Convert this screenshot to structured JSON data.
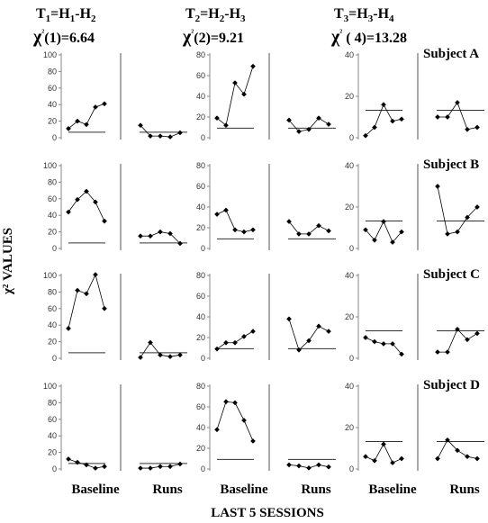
{
  "figure": {
    "ylabel": "χ² VALUES",
    "xlabel": "LAST 5 SESSIONS",
    "columns": [
      {
        "title_html": "T<sub>1</sub>=H<sub>1</sub>-H<sub>2</sub>",
        "stat": "χ²(1)=6.64"
      },
      {
        "title_html": "T<sub>2</sub>=H<sub>2</sub>-H<sub>3</sub>",
        "stat": "χ²(2)=9.21"
      },
      {
        "title_html": "T<sub>3</sub>=H<sub>3</sub>-H<sub>4</sub>",
        "stat": "χ² ( 4)=13.28"
      }
    ],
    "subjects": [
      "Subject A",
      "Subject B",
      "Subject C",
      "Subject D"
    ],
    "phases": [
      "Baseline",
      "Runs"
    ]
  },
  "chart_data": [
    {
      "type": "line",
      "subject": "Subject A",
      "test": "T1",
      "ylim": [
        0,
        100
      ],
      "yticks": [
        0,
        20,
        40,
        60,
        80,
        100
      ],
      "critical": 6.64,
      "series": [
        {
          "phase": "Baseline",
          "values": [
            11,
            20,
            16,
            37,
            41
          ]
        },
        {
          "phase": "Runs",
          "values": [
            15,
            2,
            2,
            1,
            6
          ]
        }
      ]
    },
    {
      "type": "line",
      "subject": "Subject A",
      "test": "T2",
      "ylim": [
        0,
        80
      ],
      "yticks": [
        0,
        20,
        40,
        60,
        80
      ],
      "critical": 9.21,
      "series": [
        {
          "phase": "Baseline",
          "values": [
            19,
            12,
            53,
            42,
            69
          ]
        },
        {
          "phase": "Runs",
          "values": [
            17,
            6,
            8,
            19,
            13
          ]
        }
      ]
    },
    {
      "type": "line",
      "subject": "Subject A",
      "test": "T3",
      "ylim": [
        0,
        40
      ],
      "yticks": [
        0,
        20,
        40
      ],
      "critical": 13.28,
      "series": [
        {
          "phase": "Baseline",
          "values": [
            1,
            5,
            16,
            8,
            9
          ]
        },
        {
          "phase": "Runs",
          "values": [
            10,
            10,
            17,
            4,
            5
          ]
        }
      ]
    },
    {
      "type": "line",
      "subject": "Subject B",
      "test": "T1",
      "ylim": [
        0,
        100
      ],
      "yticks": [
        0,
        20,
        40,
        60,
        80,
        100
      ],
      "critical": 6.64,
      "series": [
        {
          "phase": "Baseline",
          "values": [
            44,
            59,
            69,
            56,
            33
          ]
        },
        {
          "phase": "Runs",
          "values": [
            15,
            15,
            20,
            18,
            6
          ]
        }
      ]
    },
    {
      "type": "line",
      "subject": "Subject B",
      "test": "T2",
      "ylim": [
        0,
        80
      ],
      "yticks": [
        0,
        20,
        40,
        60,
        80
      ],
      "critical": 9.21,
      "series": [
        {
          "phase": "Baseline",
          "values": [
            33,
            37,
            18,
            16,
            18
          ]
        },
        {
          "phase": "Runs",
          "values": [
            26,
            14,
            14,
            22,
            17
          ]
        }
      ]
    },
    {
      "type": "line",
      "subject": "Subject B",
      "test": "T3",
      "ylim": [
        0,
        40
      ],
      "yticks": [
        0,
        20,
        40
      ],
      "critical": 13.28,
      "series": [
        {
          "phase": "Baseline",
          "values": [
            9,
            4,
            13,
            3,
            8
          ]
        },
        {
          "phase": "Runs",
          "values": [
            30,
            7,
            8,
            15,
            20
          ]
        }
      ]
    },
    {
      "type": "line",
      "subject": "Subject C",
      "test": "T1",
      "ylim": [
        0,
        100
      ],
      "yticks": [
        0,
        20,
        40,
        60,
        80,
        100
      ],
      "critical": 6.64,
      "series": [
        {
          "phase": "Baseline",
          "values": [
            36,
            82,
            78,
            101,
            60
          ]
        },
        {
          "phase": "Runs",
          "values": [
            1,
            19,
            4,
            2,
            4
          ]
        }
      ]
    },
    {
      "type": "line",
      "subject": "Subject C",
      "test": "T2",
      "ylim": [
        0,
        80
      ],
      "yticks": [
        0,
        20,
        40,
        60,
        80
      ],
      "critical": 9.21,
      "series": [
        {
          "phase": "Baseline",
          "values": [
            9,
            15,
            15,
            21,
            26
          ]
        },
        {
          "phase": "Runs",
          "values": [
            38,
            8,
            17,
            31,
            26
          ]
        }
      ]
    },
    {
      "type": "line",
      "subject": "Subject C",
      "test": "T3",
      "ylim": [
        0,
        40
      ],
      "yticks": [
        0,
        20,
        40
      ],
      "critical": 13.28,
      "series": [
        {
          "phase": "Baseline",
          "values": [
            10,
            8,
            7,
            7,
            2
          ]
        },
        {
          "phase": "Runs",
          "values": [
            3,
            3,
            14,
            9,
            12
          ]
        }
      ]
    },
    {
      "type": "line",
      "subject": "Subject D",
      "test": "T1",
      "ylim": [
        0,
        100
      ],
      "yticks": [
        0,
        20,
        40,
        60,
        80,
        100
      ],
      "critical": 6.64,
      "series": [
        {
          "phase": "Baseline",
          "values": [
            12,
            8,
            5,
            1,
            3
          ]
        },
        {
          "phase": "Runs",
          "values": [
            1,
            1,
            3,
            3,
            6
          ]
        }
      ]
    },
    {
      "type": "line",
      "subject": "Subject D",
      "test": "T2",
      "ylim": [
        0,
        80
      ],
      "yticks": [
        0,
        20,
        40,
        60,
        80
      ],
      "critical": 9.21,
      "series": [
        {
          "phase": "Baseline",
          "values": [
            38,
            65,
            64,
            47,
            27
          ]
        },
        {
          "phase": "Runs",
          "values": [
            4,
            3,
            1,
            4,
            2
          ]
        }
      ]
    },
    {
      "type": "line",
      "subject": "Subject D",
      "test": "T3",
      "ylim": [
        0,
        40
      ],
      "yticks": [
        0,
        20,
        40
      ],
      "critical": 13.28,
      "series": [
        {
          "phase": "Baseline",
          "values": [
            6,
            4,
            12,
            3,
            5
          ]
        },
        {
          "phase": "Runs",
          "values": [
            5,
            14,
            9,
            6,
            5
          ]
        }
      ]
    }
  ]
}
